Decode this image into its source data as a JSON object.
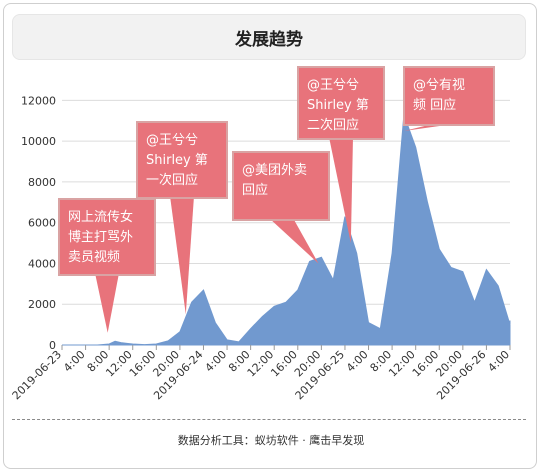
{
  "header": {
    "title": "发展趋势"
  },
  "footer": {
    "text": "数据分析工具：蚁坊软件 · 鹰击早发现"
  },
  "colors": {
    "area": "#7199cf",
    "grid": "#dcdcdc",
    "callout_fill": "#e8737b",
    "callout_border": "#d9a3a3"
  },
  "chart_data": {
    "type": "area",
    "title": "发展趋势",
    "ylim": [
      0,
      13000
    ],
    "yticks": [
      0,
      2000,
      4000,
      6000,
      8000,
      10000,
      12000
    ],
    "grid": true,
    "x_start": "2019-06-23 00:00",
    "x_end": "2019-06-26 04:00",
    "xtick_labels": [
      "2019-06-23",
      "4:00",
      "8:00",
      "12:00",
      "16:00",
      "20:00",
      "2019-06-24",
      "4:00",
      "8:00",
      "12:00",
      "16:00",
      "20:00",
      "2019-06-25",
      "4:00",
      "8:00",
      "12:00",
      "16:00",
      "20:00",
      "2019-06-26",
      "4:00"
    ],
    "points": [
      [
        "2019-06-23 00:00",
        0
      ],
      [
        "2019-06-23 02:00",
        0
      ],
      [
        "2019-06-23 04:00",
        0
      ],
      [
        "2019-06-23 06:00",
        0
      ],
      [
        "2019-06-23 08:00",
        50
      ],
      [
        "2019-06-23 09:00",
        180
      ],
      [
        "2019-06-23 10:00",
        120
      ],
      [
        "2019-06-23 12:00",
        50
      ],
      [
        "2019-06-23 14:00",
        20
      ],
      [
        "2019-06-23 16:00",
        50
      ],
      [
        "2019-06-23 18:00",
        200
      ],
      [
        "2019-06-23 20:00",
        650
      ],
      [
        "2019-06-23 22:00",
        2100
      ],
      [
        "2019-06-24 00:00",
        2700
      ],
      [
        "2019-06-24 02:00",
        1100
      ],
      [
        "2019-06-24 04:00",
        250
      ],
      [
        "2019-06-24 06:00",
        150
      ],
      [
        "2019-06-24 08:00",
        800
      ],
      [
        "2019-06-24 10:00",
        1400
      ],
      [
        "2019-06-24 12:00",
        1900
      ],
      [
        "2019-06-24 14:00",
        2100
      ],
      [
        "2019-06-24 16:00",
        2700
      ],
      [
        "2019-06-24 18:00",
        4100
      ],
      [
        "2019-06-24 20:00",
        4300
      ],
      [
        "2019-06-24 22:00",
        3200
      ],
      [
        "2019-06-25 00:00",
        6300
      ],
      [
        "2019-06-25 02:00",
        4500
      ],
      [
        "2019-06-25 04:00",
        1100
      ],
      [
        "2019-06-25 06:00",
        800
      ],
      [
        "2019-06-25 08:00",
        4500
      ],
      [
        "2019-06-25 10:00",
        11300
      ],
      [
        "2019-06-25 12:00",
        9700
      ],
      [
        "2019-06-25 14:00",
        7000
      ],
      [
        "2019-06-25 16:00",
        4700
      ],
      [
        "2019-06-25 18:00",
        3800
      ],
      [
        "2019-06-25 20:00",
        3600
      ],
      [
        "2019-06-25 22:00",
        2100
      ],
      [
        "2019-06-26 00:00",
        3700
      ],
      [
        "2019-06-26 02:00",
        2900
      ],
      [
        "2019-06-26 04:00",
        1000
      ],
      [
        "2019-06-26 06:00",
        1200
      ]
    ],
    "annotations": [
      {
        "lines": [
          "网上流传女",
          "博主打骂外",
          "卖员视频"
        ],
        "target": [
          "2019-06-23 07:45",
          600
        ]
      },
      {
        "lines": [
          "@王兮兮",
          "Shirley 第",
          "一次回应"
        ],
        "target": [
          "2019-06-23 21:00",
          1500
        ]
      },
      {
        "lines": [
          "@美团外卖",
          "回应"
        ],
        "target": [
          "2019-06-24 19:30",
          4000
        ]
      },
      {
        "lines": [
          "@王兮兮",
          "Shirley 第",
          "二次回应"
        ],
        "target": [
          "2019-06-25 01:00",
          5000
        ]
      },
      {
        "lines": [
          "@兮有视",
          "频 回应"
        ],
        "target": [
          "2019-06-25 10:00",
          10500
        ]
      }
    ]
  }
}
